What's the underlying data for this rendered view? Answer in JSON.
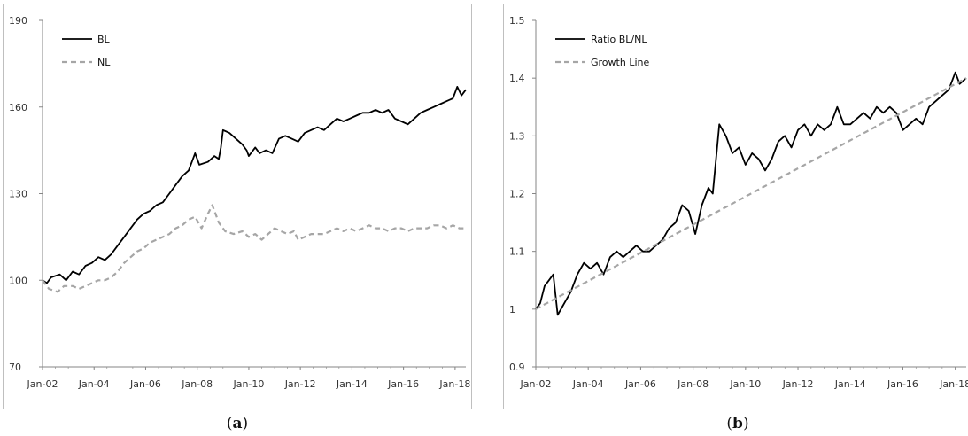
{
  "captions": {
    "a_open": "(",
    "a_letter": "a",
    "a_close": ")",
    "b_open": "(",
    "b_letter": "b",
    "b_close": ")"
  },
  "colors": {
    "primary": "#000000",
    "secondary": "#a6a6a6",
    "axis": "#868686"
  },
  "chart_data": [
    {
      "type": "line",
      "x_ticks": [
        "Jan-02",
        "Jan-04",
        "Jan-06",
        "Jan-08",
        "Jan-10",
        "Jan-12",
        "Jan-14",
        "Jan-16",
        "Jan-18"
      ],
      "xlim": [
        "2002-01",
        "2018-06"
      ],
      "ylim": [
        70,
        190
      ],
      "y_ticks": [
        "70",
        "100",
        "130",
        "160",
        "190"
      ],
      "legend": "top-left",
      "grid": false,
      "series": [
        {
          "name": "BL",
          "style": "solid",
          "points": [
            [
              "2002-01",
              100
            ],
            [
              "2002-03",
              99
            ],
            [
              "2002-05",
              101
            ],
            [
              "2002-09",
              102
            ],
            [
              "2002-12",
              100
            ],
            [
              "2003-03",
              103
            ],
            [
              "2003-06",
              102
            ],
            [
              "2003-09",
              105
            ],
            [
              "2003-12",
              106
            ],
            [
              "2004-03",
              108
            ],
            [
              "2004-06",
              107
            ],
            [
              "2004-09",
              109
            ],
            [
              "2004-12",
              112
            ],
            [
              "2005-03",
              115
            ],
            [
              "2005-06",
              118
            ],
            [
              "2005-09",
              121
            ],
            [
              "2005-12",
              123
            ],
            [
              "2006-03",
              124
            ],
            [
              "2006-06",
              126
            ],
            [
              "2006-09",
              127
            ],
            [
              "2006-12",
              130
            ],
            [
              "2007-03",
              133
            ],
            [
              "2007-06",
              136
            ],
            [
              "2007-09",
              138
            ],
            [
              "2007-12",
              144
            ],
            [
              "2008-02",
              140
            ],
            [
              "2008-06",
              141
            ],
            [
              "2008-09",
              143
            ],
            [
              "2008-11",
              142
            ],
            [
              "2008-12",
              146
            ],
            [
              "2009-01",
              152
            ],
            [
              "2009-04",
              151
            ],
            [
              "2009-07",
              149
            ],
            [
              "2009-10",
              147
            ],
            [
              "2009-12",
              145
            ],
            [
              "2010-01",
              143
            ],
            [
              "2010-04",
              146
            ],
            [
              "2010-06",
              144
            ],
            [
              "2010-09",
              145
            ],
            [
              "2010-12",
              144
            ],
            [
              "2011-03",
              149
            ],
            [
              "2011-06",
              150
            ],
            [
              "2011-09",
              149
            ],
            [
              "2011-12",
              148
            ],
            [
              "2012-03",
              151
            ],
            [
              "2012-06",
              152
            ],
            [
              "2012-09",
              153
            ],
            [
              "2012-12",
              152
            ],
            [
              "2013-03",
              154
            ],
            [
              "2013-06",
              156
            ],
            [
              "2013-09",
              155
            ],
            [
              "2013-12",
              156
            ],
            [
              "2014-03",
              157
            ],
            [
              "2014-06",
              158
            ],
            [
              "2014-09",
              158
            ],
            [
              "2014-12",
              159
            ],
            [
              "2015-03",
              158
            ],
            [
              "2015-06",
              159
            ],
            [
              "2015-09",
              156
            ],
            [
              "2015-12",
              155
            ],
            [
              "2016-03",
              154
            ],
            [
              "2016-06",
              156
            ],
            [
              "2016-09",
              158
            ],
            [
              "2016-12",
              159
            ],
            [
              "2017-03",
              160
            ],
            [
              "2017-06",
              161
            ],
            [
              "2017-09",
              162
            ],
            [
              "2017-12",
              163
            ],
            [
              "2018-02",
              167
            ],
            [
              "2018-04",
              164
            ],
            [
              "2018-06",
              166
            ]
          ]
        },
        {
          "name": "NL",
          "style": "dashed",
          "points": [
            [
              "2002-01",
              100
            ],
            [
              "2002-04",
              97
            ],
            [
              "2002-08",
              96
            ],
            [
              "2002-11",
              98
            ],
            [
              "2003-03",
              98
            ],
            [
              "2003-06",
              97
            ],
            [
              "2003-09",
              98
            ],
            [
              "2003-12",
              99
            ],
            [
              "2004-03",
              100
            ],
            [
              "2004-06",
              100
            ],
            [
              "2004-09",
              101
            ],
            [
              "2004-12",
              103
            ],
            [
              "2005-03",
              106
            ],
            [
              "2005-06",
              108
            ],
            [
              "2005-09",
              110
            ],
            [
              "2005-12",
              111
            ],
            [
              "2006-03",
              113
            ],
            [
              "2006-06",
              114
            ],
            [
              "2006-09",
              115
            ],
            [
              "2006-12",
              116
            ],
            [
              "2007-03",
              118
            ],
            [
              "2007-06",
              119
            ],
            [
              "2007-09",
              121
            ],
            [
              "2007-12",
              122
            ],
            [
              "2008-03",
              118
            ],
            [
              "2008-06",
              123
            ],
            [
              "2008-08",
              126
            ],
            [
              "2008-11",
              120
            ],
            [
              "2009-02",
              117
            ],
            [
              "2009-06",
              116
            ],
            [
              "2009-10",
              117
            ],
            [
              "2010-01",
              115
            ],
            [
              "2010-04",
              116
            ],
            [
              "2010-07",
              114
            ],
            [
              "2010-10",
              116
            ],
            [
              "2011-01",
              118
            ],
            [
              "2011-04",
              117
            ],
            [
              "2011-07",
              116
            ],
            [
              "2011-10",
              117
            ],
            [
              "2011-12",
              114
            ],
            [
              "2012-03",
              115
            ],
            [
              "2012-06",
              116
            ],
            [
              "2012-09",
              116
            ],
            [
              "2012-12",
              116
            ],
            [
              "2013-03",
              117
            ],
            [
              "2013-06",
              118
            ],
            [
              "2013-09",
              117
            ],
            [
              "2013-12",
              118
            ],
            [
              "2014-03",
              117
            ],
            [
              "2014-06",
              118
            ],
            [
              "2014-09",
              119
            ],
            [
              "2014-12",
              118
            ],
            [
              "2015-03",
              118
            ],
            [
              "2015-06",
              117
            ],
            [
              "2015-09",
              118
            ],
            [
              "2015-12",
              118
            ],
            [
              "2016-03",
              117
            ],
            [
              "2016-06",
              118
            ],
            [
              "2016-09",
              118
            ],
            [
              "2016-12",
              118
            ],
            [
              "2017-03",
              119
            ],
            [
              "2017-06",
              119
            ],
            [
              "2017-09",
              118
            ],
            [
              "2017-12",
              119
            ],
            [
              "2018-03",
              118
            ],
            [
              "2018-06",
              118
            ]
          ]
        }
      ]
    },
    {
      "type": "line",
      "x_ticks": [
        "Jan-02",
        "Jan-04",
        "Jan-06",
        "Jan-08",
        "Jan-10",
        "Jan-12",
        "Jan-14",
        "Jan-16",
        "Jan-18"
      ],
      "xlim": [
        "2002-01",
        "2018-06"
      ],
      "ylim": [
        0.9,
        1.5
      ],
      "y_ticks": [
        "0.9",
        "1",
        "1.1",
        "1.2",
        "1.3",
        "1.4",
        "1.5"
      ],
      "legend": "top-left",
      "grid": false,
      "series": [
        {
          "name": "Ratio BL/NL",
          "style": "solid",
          "points": [
            [
              "2002-01",
              1.0
            ],
            [
              "2002-03",
              1.01
            ],
            [
              "2002-05",
              1.04
            ],
            [
              "2002-07",
              1.05
            ],
            [
              "2002-09",
              1.06
            ],
            [
              "2002-11",
              0.99
            ],
            [
              "2003-02",
              1.01
            ],
            [
              "2003-05",
              1.03
            ],
            [
              "2003-08",
              1.06
            ],
            [
              "2003-11",
              1.08
            ],
            [
              "2004-02",
              1.07
            ],
            [
              "2004-05",
              1.08
            ],
            [
              "2004-08",
              1.06
            ],
            [
              "2004-11",
              1.09
            ],
            [
              "2005-02",
              1.1
            ],
            [
              "2005-05",
              1.09
            ],
            [
              "2005-08",
              1.1
            ],
            [
              "2005-11",
              1.11
            ],
            [
              "2006-02",
              1.1
            ],
            [
              "2006-05",
              1.1
            ],
            [
              "2006-08",
              1.11
            ],
            [
              "2006-11",
              1.12
            ],
            [
              "2007-02",
              1.14
            ],
            [
              "2007-05",
              1.15
            ],
            [
              "2007-08",
              1.18
            ],
            [
              "2007-11",
              1.17
            ],
            [
              "2008-02",
              1.13
            ],
            [
              "2008-05",
              1.18
            ],
            [
              "2008-08",
              1.21
            ],
            [
              "2008-10",
              1.2
            ],
            [
              "2009-01",
              1.32
            ],
            [
              "2009-04",
              1.3
            ],
            [
              "2009-07",
              1.27
            ],
            [
              "2009-10",
              1.28
            ],
            [
              "2010-01",
              1.25
            ],
            [
              "2010-04",
              1.27
            ],
            [
              "2010-07",
              1.26
            ],
            [
              "2010-10",
              1.24
            ],
            [
              "2011-01",
              1.26
            ],
            [
              "2011-04",
              1.29
            ],
            [
              "2011-07",
              1.3
            ],
            [
              "2011-10",
              1.28
            ],
            [
              "2012-01",
              1.31
            ],
            [
              "2012-04",
              1.32
            ],
            [
              "2012-07",
              1.3
            ],
            [
              "2012-10",
              1.32
            ],
            [
              "2013-01",
              1.31
            ],
            [
              "2013-04",
              1.32
            ],
            [
              "2013-07",
              1.35
            ],
            [
              "2013-10",
              1.32
            ],
            [
              "2014-01",
              1.32
            ],
            [
              "2014-04",
              1.33
            ],
            [
              "2014-07",
              1.34
            ],
            [
              "2014-10",
              1.33
            ],
            [
              "2015-01",
              1.35
            ],
            [
              "2015-04",
              1.34
            ],
            [
              "2015-07",
              1.35
            ],
            [
              "2015-10",
              1.34
            ],
            [
              "2016-01",
              1.31
            ],
            [
              "2016-04",
              1.32
            ],
            [
              "2016-07",
              1.33
            ],
            [
              "2016-10",
              1.32
            ],
            [
              "2017-01",
              1.35
            ],
            [
              "2017-04",
              1.36
            ],
            [
              "2017-07",
              1.37
            ],
            [
              "2017-10",
              1.38
            ],
            [
              "2018-01",
              1.41
            ],
            [
              "2018-03",
              1.39
            ],
            [
              "2018-06",
              1.4
            ]
          ]
        },
        {
          "name": "Growth Line",
          "style": "dashed",
          "points": [
            [
              "2002-01",
              1.0
            ],
            [
              "2018-06",
              1.4
            ]
          ]
        }
      ]
    }
  ]
}
